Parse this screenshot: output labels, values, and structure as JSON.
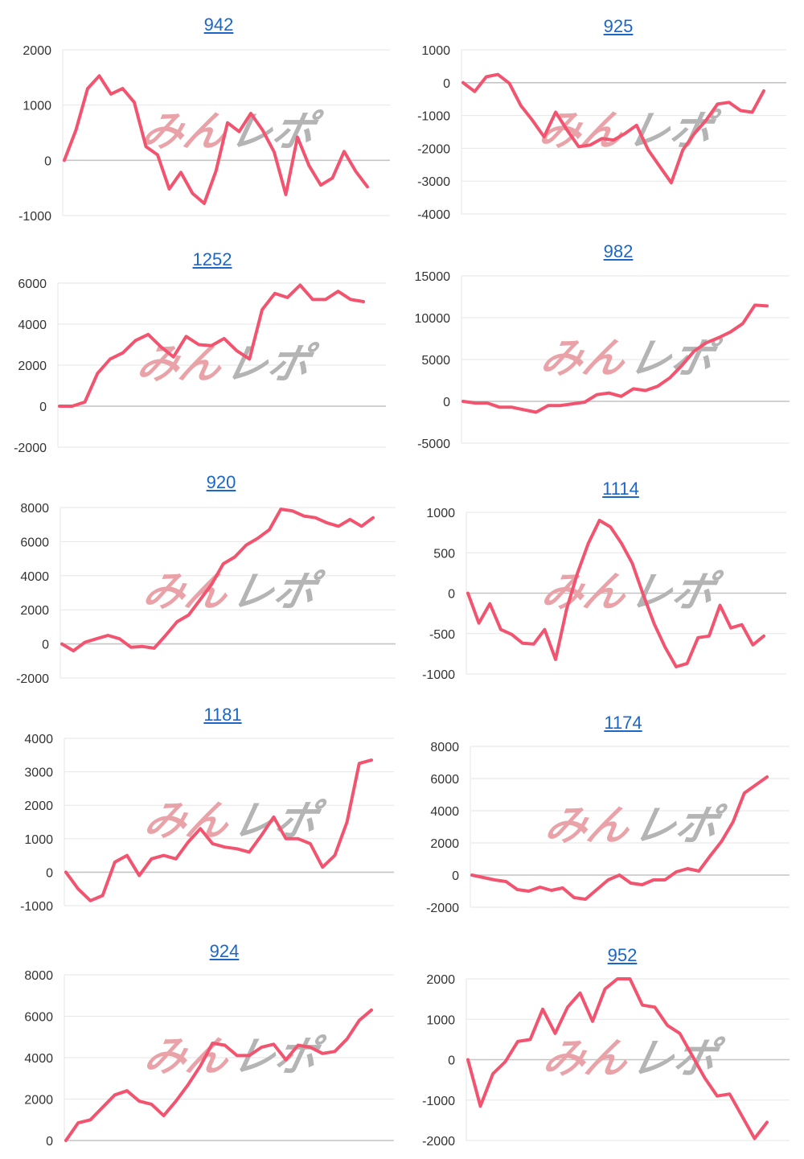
{
  "line_color": "#f25470",
  "link_color": "#1a66c9",
  "watermark": {
    "text_red": "みん",
    "text_gray": "レポ",
    "red": "#e9a3a8",
    "gray": "#b4b4b4"
  },
  "chart_data": [
    {
      "type": "line",
      "title": "942",
      "ylim": [
        -1000,
        2000
      ],
      "yticks": [
        2000,
        1000,
        0,
        -1000
      ],
      "values": [
        0,
        550,
        1300,
        1530,
        1200,
        1300,
        1050,
        250,
        100,
        -520,
        -220,
        -600,
        -780,
        -200,
        680,
        520,
        850,
        550,
        150,
        -620,
        420,
        -100,
        -450,
        -320,
        160,
        -200,
        -480
      ]
    },
    {
      "type": "line",
      "title": "925",
      "ylim": [
        -4000,
        1000
      ],
      "yticks": [
        1000,
        0,
        -1000,
        -2000,
        -3000,
        -4000
      ],
      "values": [
        0,
        -270,
        180,
        250,
        -20,
        -700,
        -1150,
        -1650,
        -900,
        -1450,
        -1950,
        -1900,
        -1700,
        -1750,
        -1550,
        -1300,
        -2050,
        -2550,
        -3050,
        -2050,
        -1550,
        -1150,
        -650,
        -600,
        -850,
        -900,
        -250
      ]
    },
    {
      "type": "line",
      "title": "1252",
      "ylim": [
        -2000,
        6000
      ],
      "yticks": [
        6000,
        4000,
        2000,
        0,
        -2000
      ],
      "values": [
        0,
        0,
        200,
        1600,
        2300,
        2600,
        3200,
        3500,
        2900,
        2400,
        3400,
        3000,
        2950,
        3300,
        2700,
        2300,
        4700,
        5500,
        5300,
        5900,
        5200,
        5200,
        5600,
        5200,
        5100
      ]
    },
    {
      "type": "line",
      "title": "982",
      "ylim": [
        -5000,
        15000
      ],
      "yticks": [
        15000,
        10000,
        5000,
        0,
        -5000
      ],
      "values": [
        0,
        -200,
        -200,
        -700,
        -700,
        -1000,
        -1300,
        -500,
        -500,
        -300,
        -100,
        800,
        1000,
        600,
        1500,
        1300,
        1800,
        2800,
        4300,
        6000,
        7000,
        7600,
        8300,
        9300,
        11500,
        11400
      ]
    },
    {
      "type": "line",
      "title": "920",
      "ylim": [
        -2000,
        8000
      ],
      "yticks": [
        8000,
        6000,
        4000,
        2000,
        0,
        -2000
      ],
      "values": [
        0,
        -400,
        100,
        300,
        500,
        300,
        -200,
        -150,
        -250,
        500,
        1300,
        1700,
        2600,
        3500,
        4700,
        5100,
        5800,
        6200,
        6700,
        7900,
        7800,
        7500,
        7400,
        7100,
        6900,
        7300,
        6900,
        7400
      ]
    },
    {
      "type": "line",
      "title": "1114",
      "ylim": [
        -1000,
        1000
      ],
      "yticks": [
        1000,
        500,
        0,
        -500,
        -1000
      ],
      "values": [
        0,
        -370,
        -130,
        -450,
        -510,
        -620,
        -630,
        -450,
        -820,
        -200,
        250,
        620,
        900,
        820,
        620,
        370,
        -20,
        -380,
        -670,
        -910,
        -870,
        -550,
        -530,
        -150,
        -430,
        -390,
        -640,
        -530
      ]
    },
    {
      "type": "line",
      "title": "1181",
      "ylim": [
        -1000,
        4000
      ],
      "yticks": [
        4000,
        3000,
        2000,
        1000,
        0,
        -1000
      ],
      "values": [
        0,
        -500,
        -850,
        -700,
        300,
        500,
        -100,
        400,
        500,
        400,
        900,
        1300,
        850,
        750,
        700,
        600,
        1100,
        1650,
        1000,
        1000,
        850,
        150,
        500,
        1500,
        3250,
        3350
      ]
    },
    {
      "type": "line",
      "title": "1174",
      "ylim": [
        -2000,
        8000
      ],
      "yticks": [
        8000,
        6000,
        4000,
        2000,
        0,
        -2000
      ],
      "values": [
        0,
        -150,
        -300,
        -400,
        -900,
        -1000,
        -750,
        -950,
        -800,
        -1400,
        -1500,
        -900,
        -300,
        0,
        -500,
        -600,
        -300,
        -300,
        200,
        400,
        250,
        1200,
        2100,
        3300,
        5100,
        5600,
        6100
      ]
    },
    {
      "type": "line",
      "title": "924",
      "ylim": [
        0,
        8000
      ],
      "yticks": [
        8000,
        6000,
        4000,
        2000,
        0
      ],
      "values": [
        0,
        850,
        1000,
        1600,
        2200,
        2400,
        1900,
        1750,
        1200,
        1900,
        2700,
        3600,
        4700,
        4600,
        4100,
        4100,
        4500,
        4650,
        3900,
        4600,
        4500,
        4200,
        4300,
        4900,
        5800,
        6300
      ]
    },
    {
      "type": "line",
      "title": "952",
      "ylim": [
        -2000,
        2000
      ],
      "yticks": [
        2000,
        1000,
        0,
        -1000,
        -2000
      ],
      "values": [
        0,
        -1150,
        -350,
        -50,
        450,
        500,
        1250,
        650,
        1300,
        1650,
        950,
        1750,
        2000,
        2000,
        1350,
        1300,
        850,
        650,
        100,
        -450,
        -900,
        -850,
        -1400,
        -1950,
        -1550
      ]
    }
  ]
}
